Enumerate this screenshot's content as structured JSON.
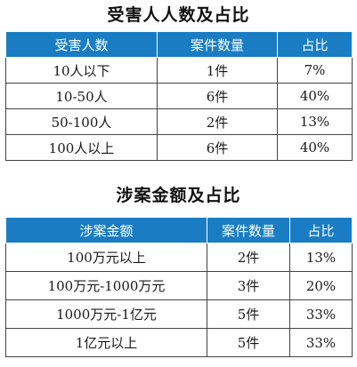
{
  "victims_section": {
    "title": "受害人人数及占比",
    "headers": [
      "受害人数",
      "案件数量",
      "占比"
    ],
    "rows": [
      [
        "10人以下",
        "1件",
        "7%"
      ],
      [
        "10-50人",
        "6件",
        "40%"
      ],
      [
        "50-100人",
        "2件",
        "13%"
      ],
      [
        "100人以上",
        "6件",
        "40%"
      ]
    ]
  },
  "amount_section": {
    "title": "涉案金额及占比",
    "headers": [
      "涉案金额",
      "案件数量",
      "占比"
    ],
    "rows": [
      [
        "100万元以上",
        "2件",
        "13%"
      ],
      [
        "100万元-1000万元",
        "3件",
        "20%"
      ],
      [
        "1000万元-1亿元",
        "5件",
        "33%"
      ],
      [
        "1亿元以上",
        "5件",
        "33%"
      ]
    ]
  },
  "colors": {
    "header_bg": "#1a7dc4",
    "header_text": "#ffffff",
    "grid_line": "#444444"
  }
}
